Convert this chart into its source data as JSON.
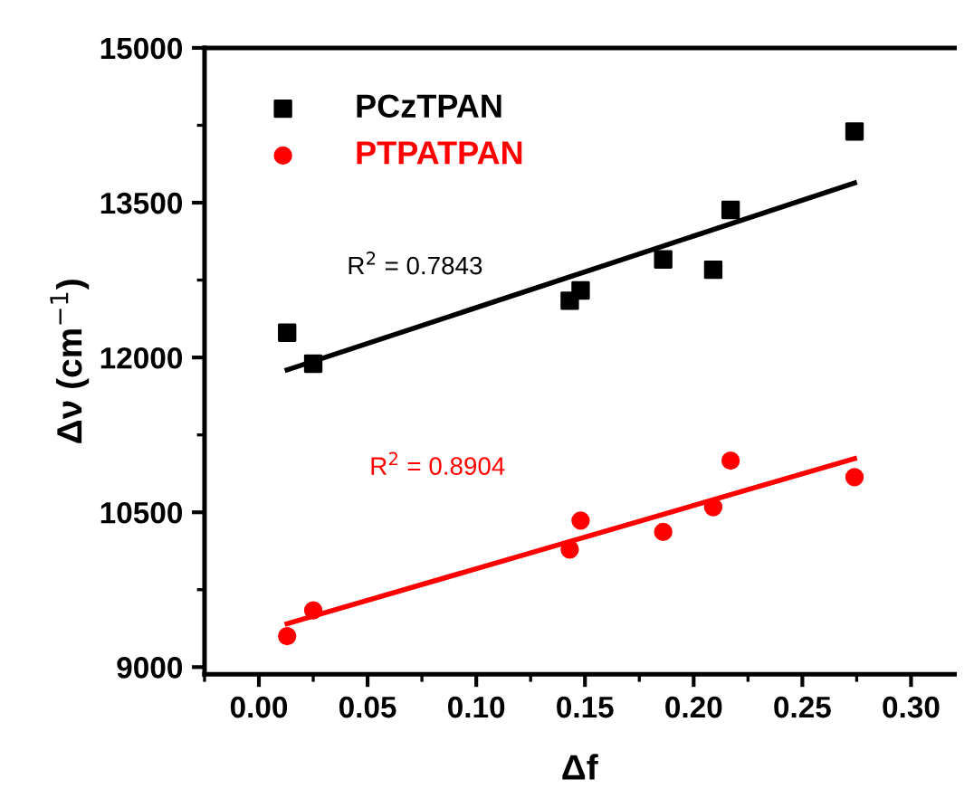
{
  "chart_data": {
    "type": "scatter",
    "xlabel": "Δf",
    "ylabel": "Δν (cm$^{−1}$)",
    "xlim": [
      -0.025,
      0.32
    ],
    "xticks": [
      {
        "value": 0,
        "label": "0.00"
      },
      {
        "value": 0.05,
        "label": "0.05"
      },
      {
        "value": 0.1,
        "label": "0.10"
      },
      {
        "value": 0.15,
        "label": "0.15"
      },
      {
        "value": 0.2,
        "label": "0.20"
      },
      {
        "value": 0.25,
        "label": "0.25"
      },
      {
        "value": 0.3,
        "label": "0.30"
      }
    ],
    "ylim": [
      8930,
      15000
    ],
    "yticks": [
      9000,
      10500,
      12000,
      13500,
      15000
    ],
    "series": [
      {
        "name": "PCzTPAN",
        "color": "#000000",
        "marker": "square",
        "x": [
          0.013,
          0.025,
          0.143,
          0.148,
          0.186,
          0.209,
          0.217,
          0.274
        ],
        "values": [
          12240,
          11940,
          12550,
          12650,
          12950,
          12850,
          13430,
          14190
        ]
      },
      {
        "name": "PTPATPAN",
        "color": "#ff0000",
        "marker": "circle",
        "x": [
          0.013,
          0.025,
          0.143,
          0.148,
          0.186,
          0.209,
          0.217,
          0.274
        ],
        "values": [
          9300,
          9550,
          10140,
          10420,
          10310,
          10550,
          11000,
          10840
        ]
      },
      {
        "type": "line",
        "color": "#000000",
        "x": [
          0.013,
          0.274
        ],
        "values": [
          11880,
          13690
        ]
      },
      {
        "type": "line",
        "color": "#ff0000",
        "x": [
          0.013,
          0.274
        ],
        "values": [
          9420,
          11020
        ]
      }
    ],
    "annotations": [
      "R$^{2}$ = 0.7843",
      "R$^{2}$ = 0.8904"
    ],
    "legend": "top left",
    "grid": false
  }
}
